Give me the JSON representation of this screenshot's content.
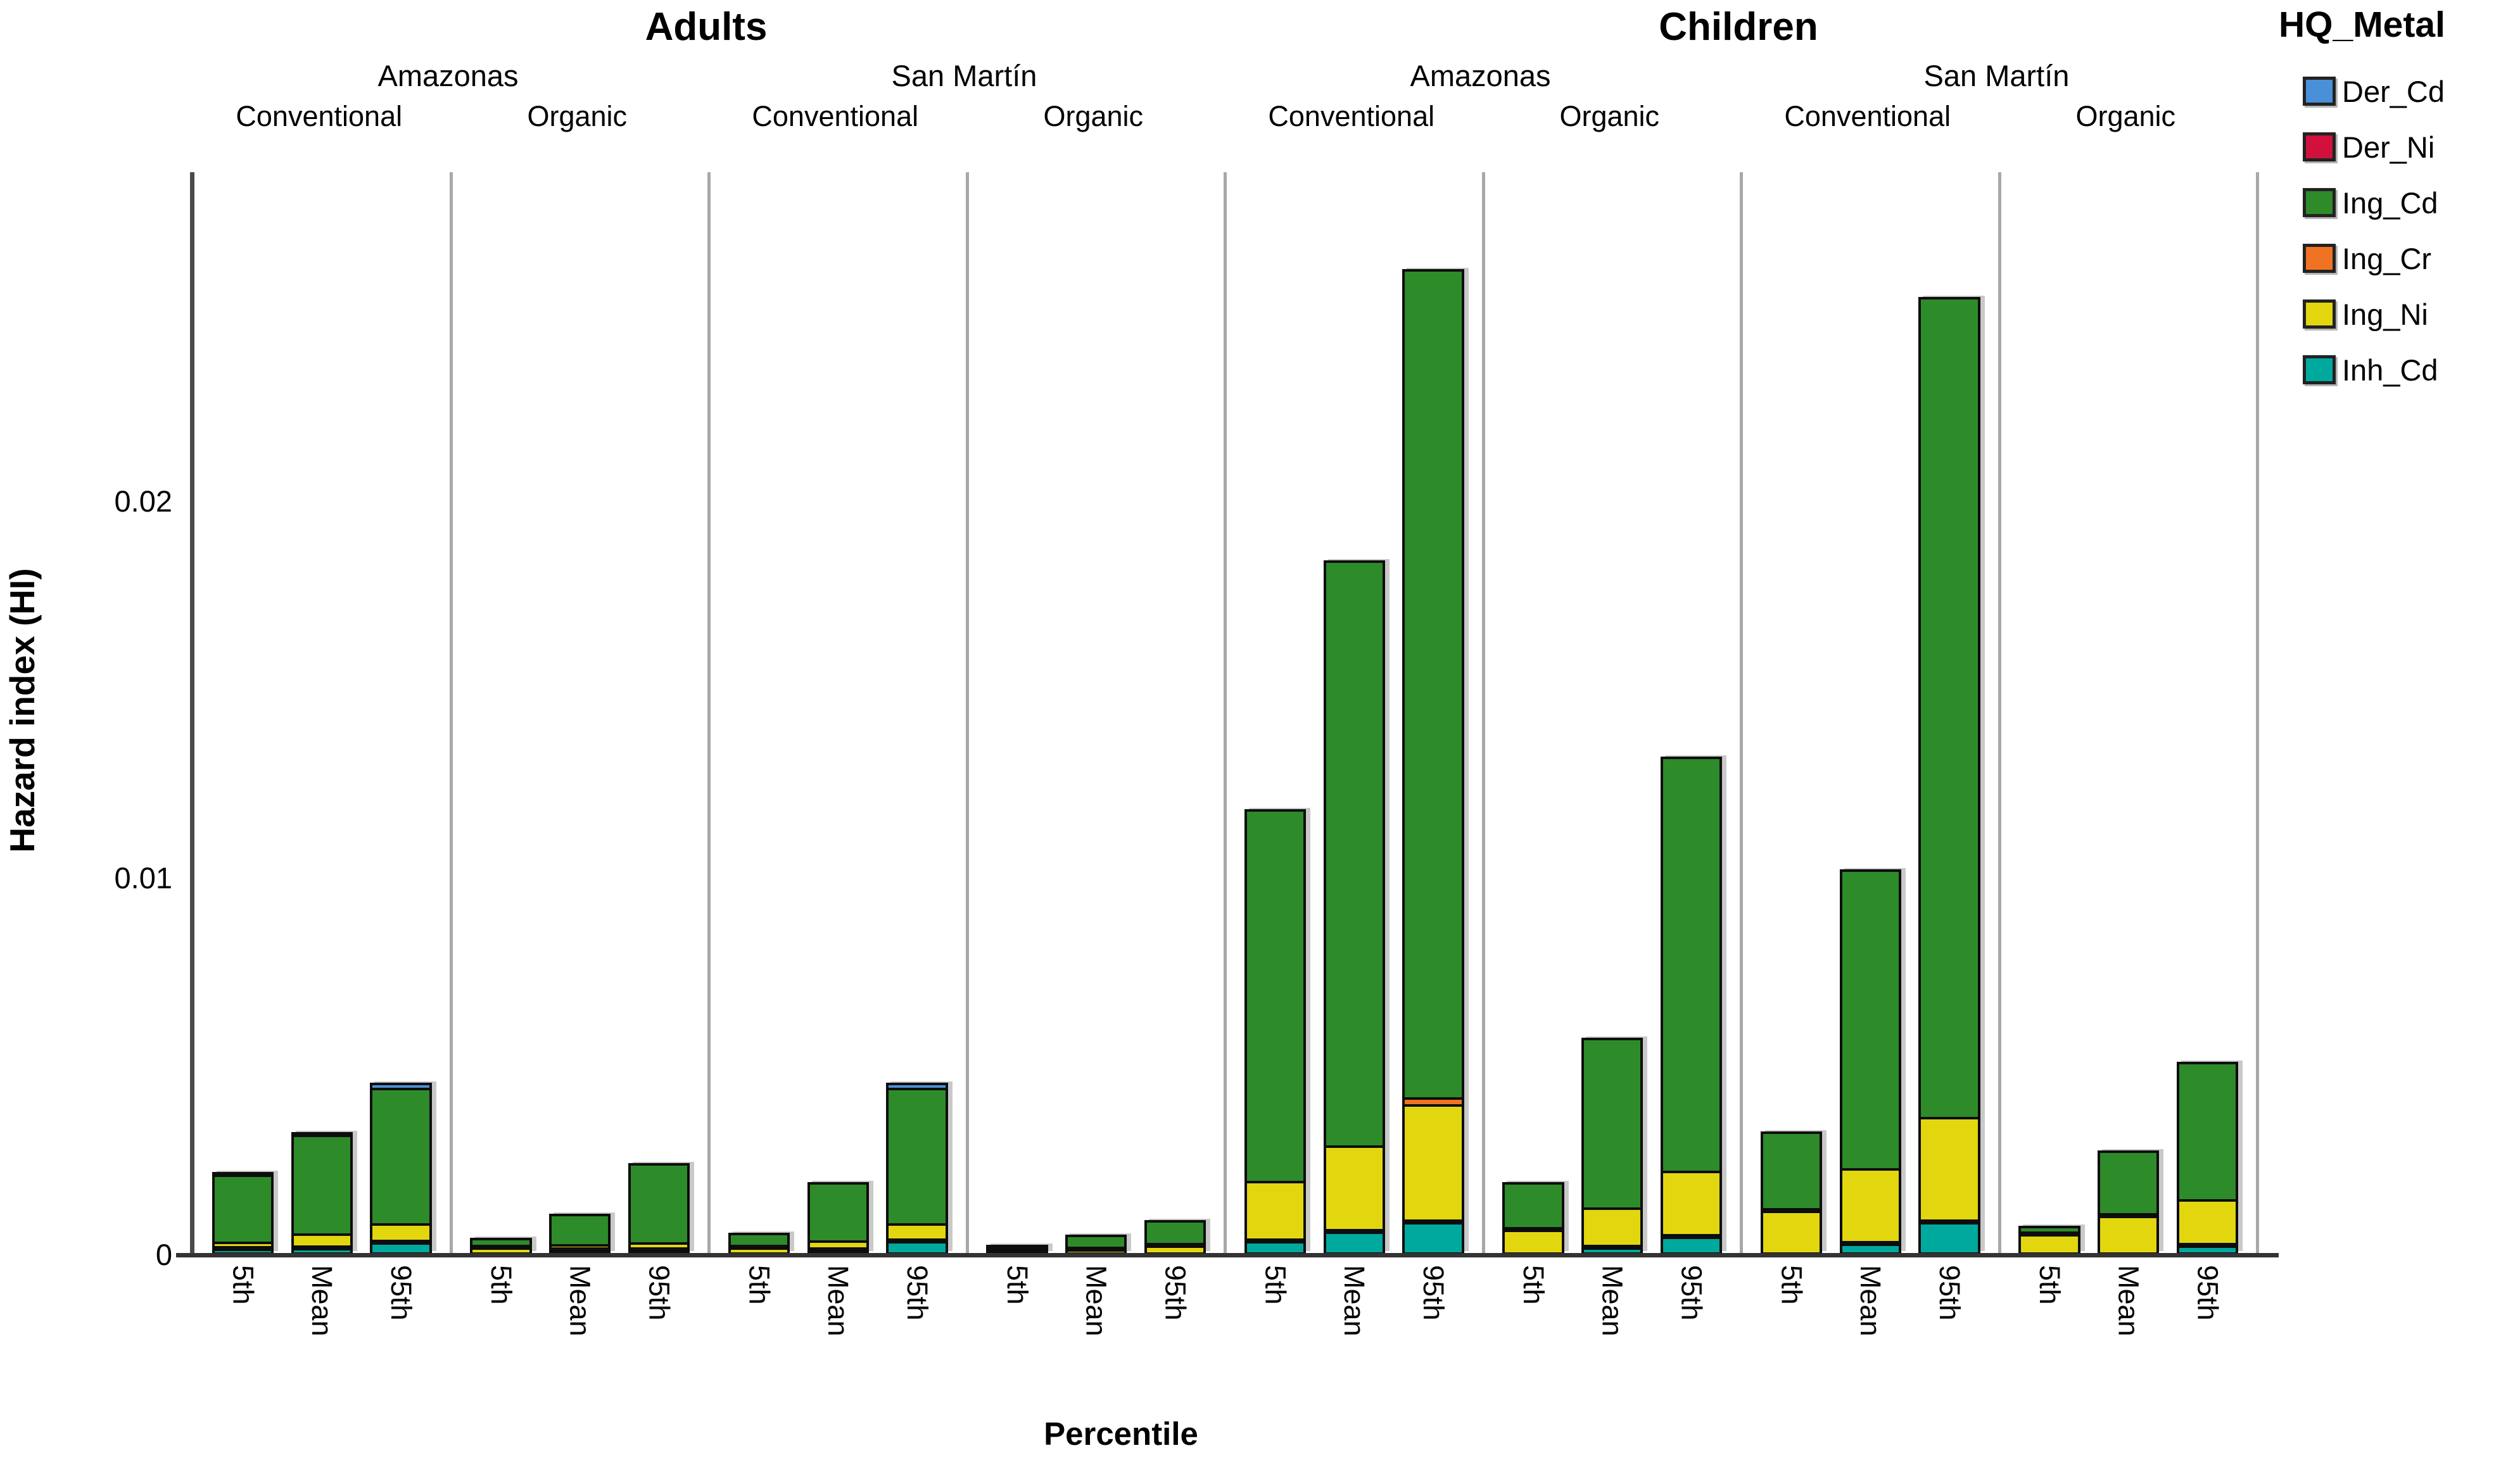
{
  "facet_titles": {
    "left": "Adults",
    "right": "Children"
  },
  "y_axis": {
    "label": "Hazard index (HI)",
    "ticks": [
      {
        "label": "0",
        "value": 0
      },
      {
        "label": "0.01",
        "value": 0.01
      },
      {
        "label": "0.02",
        "value": 0.02
      }
    ]
  },
  "x_axis": {
    "label": "Percentile",
    "tick_labels": [
      "5th",
      "Mean",
      "95th"
    ]
  },
  "legend": {
    "title": "HQ_Metal",
    "items": [
      {
        "label": "Der_Cd",
        "color": "#4A90D9"
      },
      {
        "label": "Der_Ni",
        "color": "#D2103C"
      },
      {
        "label": "Ing_Cd",
        "color": "#2E8B2A"
      },
      {
        "label": "Ing_Cr",
        "color": "#F07323"
      },
      {
        "label": "Ing_Ni",
        "color": "#E2D70F"
      },
      {
        "label": "Inh_Cd",
        "color": "#00A99E"
      }
    ]
  },
  "chart_data": {
    "type": "bar",
    "subtype": "stacked-faceted",
    "stack_order_bottom_to_top": [
      "Inh_Cd",
      "Ing_Ni",
      "Ing_Cr",
      "Ing_Cd",
      "Der_Ni",
      "Der_Cd"
    ],
    "series_colors": {
      "Der_Cd": "#4A90D9",
      "Der_Ni": "#D2103C",
      "Ing_Cd": "#2E8B2A",
      "Ing_Cr": "#F07323",
      "Ing_Ni": "#E2D70F",
      "Inh_Cd": "#00A99E"
    },
    "ylabel": "Hazard index (HI)",
    "xlabel": "Percentile",
    "ylim": [
      0,
      0.0288
    ],
    "grid": false,
    "legend_position": "right",
    "categories": [
      "5th",
      "Mean",
      "95th"
    ],
    "facets": [
      {
        "group": "Adults",
        "region": "Amazonas",
        "treatment": "Conventional",
        "bars": [
          {
            "percentile": "5th",
            "segments": {
              "Inh_Cd": 0.00016,
              "Ing_Ni": 0.00019,
              "Ing_Cd": 0.00185,
              "Der_Cd": 5e-05
            },
            "total": 0.00225
          },
          {
            "percentile": "Mean",
            "segments": {
              "Inh_Cd": 0.00019,
              "Ing_Ni": 0.00038,
              "Ing_Cd": 0.00269,
              "Der_Cd": 0.00014
            },
            "total": 0.0034
          },
          {
            "percentile": "95th",
            "segments": {
              "Inh_Cd": 0.00034,
              "Ing_Ni": 0.0005,
              "Ing_Cd": 0.00366,
              "Der_Cd": 0.0002
            },
            "total": 0.0047
          }
        ]
      },
      {
        "group": "Adults",
        "region": "Amazonas",
        "treatment": "Organic",
        "bars": [
          {
            "percentile": "5th",
            "segments": {
              "Ing_Ni": 0.0002,
              "Ing_Cd": 0.00025
            },
            "total": 0.00045
          },
          {
            "percentile": "Mean",
            "segments": {
              "Inh_Cd": 5e-05,
              "Ing_Ni": 0.00015,
              "Ing_Cd": 0.00087
            },
            "total": 0.00107
          },
          {
            "percentile": "95th",
            "segments": {
              "Inh_Cd": 0.00014,
              "Ing_Ni": 0.0002,
              "Ing_Cd": 0.00216
            },
            "total": 0.0025
          }
        ]
      },
      {
        "group": "Adults",
        "region": "San Martín",
        "treatment": "Conventional",
        "bars": [
          {
            "percentile": "5th",
            "segments": {
              "Ing_Ni": 0.0002,
              "Ing_Cd": 0.00039
            },
            "total": 0.00059
          },
          {
            "percentile": "Mean",
            "segments": {
              "Inh_Cd": 0.0001,
              "Ing_Ni": 0.00025,
              "Ing_Cd": 0.00162
            },
            "total": 0.00197
          },
          {
            "percentile": "95th",
            "segments": {
              "Inh_Cd": 0.00037,
              "Ing_Ni": 0.00047,
              "Ing_Cd": 0.00366,
              "Der_Cd": 0.0002
            },
            "total": 0.0047
          }
        ]
      },
      {
        "group": "Adults",
        "region": "San Martín",
        "treatment": "Organic",
        "bars": [
          {
            "percentile": "5th",
            "segments": {
              "Ing_Ni": 0.0001,
              "Ing_Cd": 0.00013
            },
            "total": 0.00023
          },
          {
            "percentile": "Mean",
            "segments": {
              "Ing_Ni": 0.00015,
              "Ing_Cd": 0.00039
            },
            "total": 0.00054
          },
          {
            "percentile": "95th",
            "segments": {
              "Ing_Ni": 0.00025,
              "Ing_Cd": 0.00067
            },
            "total": 0.00092
          }
        ]
      },
      {
        "group": "Children",
        "region": "Amazonas",
        "treatment": "Conventional",
        "bars": [
          {
            "percentile": "5th",
            "segments": {
              "Inh_Cd": 0.00037,
              "Ing_Ni": 0.0016,
              "Ing_Cd": 0.00993
            },
            "total": 0.0119
          },
          {
            "percentile": "Mean",
            "segments": {
              "Inh_Cd": 0.00062,
              "Ing_Ni": 0.00229,
              "Ing_Cd": 0.01559
            },
            "total": 0.0185
          },
          {
            "percentile": "95th",
            "segments": {
              "Inh_Cd": 0.00087,
              "Ing_Ni": 0.00313,
              "Ing_Cr": 0.00025,
              "Ing_Cd": 0.02205
            },
            "total": 0.0263
          }
        ]
      },
      {
        "group": "Children",
        "region": "Amazonas",
        "treatment": "Organic",
        "bars": [
          {
            "percentile": "5th",
            "segments": {
              "Ing_Ni": 0.00067,
              "Ing_Cd": 0.00126
            },
            "total": 0.00193
          },
          {
            "percentile": "Mean",
            "segments": {
              "Inh_Cd": 0.0002,
              "Ing_Ni": 0.00106,
              "Ing_Cd": 0.00457
            },
            "total": 0.00583
          },
          {
            "percentile": "95th",
            "segments": {
              "Inh_Cd": 0.00048,
              "Ing_Ni": 0.00175,
              "Ing_Cd": 0.01107
            },
            "total": 0.0133
          }
        ]
      },
      {
        "group": "Children",
        "region": "San Martín",
        "treatment": "Conventional",
        "bars": [
          {
            "percentile": "5th",
            "segments": {
              "Ing_Ni": 0.00118,
              "Ing_Cd": 0.0021
            },
            "total": 0.00328
          },
          {
            "percentile": "Mean",
            "segments": {
              "Inh_Cd": 0.0003,
              "Ing_Ni": 0.002,
              "Ing_Cd": 0.008
            },
            "total": 0.0103
          },
          {
            "percentile": "95th",
            "segments": {
              "Inh_Cd": 0.00087,
              "Ing_Ni": 0.0028,
              "Ing_Cd": 0.02183
            },
            "total": 0.0255
          }
        ]
      },
      {
        "group": "Children",
        "region": "San Martín",
        "treatment": "Organic",
        "bars": [
          {
            "percentile": "5th",
            "segments": {
              "Ing_Ni": 0.00056,
              "Ing_Cd": 0.00022
            },
            "total": 0.00078
          },
          {
            "percentile": "Mean",
            "segments": {
              "Ing_Ni": 0.00104,
              "Ing_Cd": 0.00173
            },
            "total": 0.00277
          },
          {
            "percentile": "95th",
            "segments": {
              "Inh_Cd": 0.00025,
              "Ing_Ni": 0.00123,
              "Ing_Cd": 0.00372
            },
            "total": 0.0052
          }
        ]
      }
    ]
  }
}
